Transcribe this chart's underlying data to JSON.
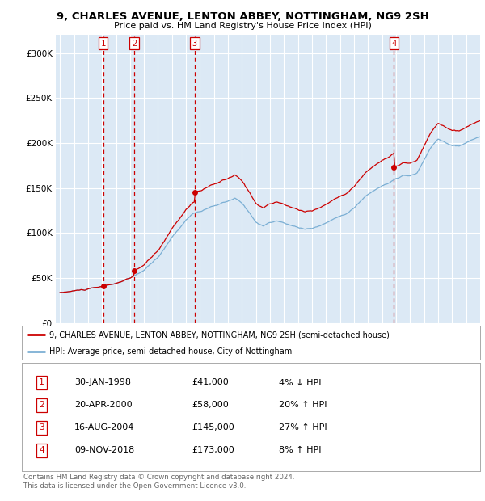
{
  "title": "9, CHARLES AVENUE, LENTON ABBEY, NOTTINGHAM, NG9 2SH",
  "subtitle": "Price paid vs. HM Land Registry's House Price Index (HPI)",
  "bg_color": "#dce9f5",
  "red_color": "#cc0000",
  "blue_color": "#7bafd4",
  "transactions": [
    {
      "num": 1,
      "date_label": "30-JAN-1998",
      "price": 41000,
      "hpi_rel": "4% ↓ HPI",
      "date_x": 1998.08
    },
    {
      "num": 2,
      "date_label": "20-APR-2000",
      "price": 58000,
      "hpi_rel": "20% ↑ HPI",
      "date_x": 2000.3
    },
    {
      "num": 3,
      "date_label": "16-AUG-2004",
      "price": 145000,
      "hpi_rel": "27% ↑ HPI",
      "date_x": 2004.62
    },
    {
      "num": 4,
      "date_label": "09-NOV-2018",
      "price": 173000,
      "hpi_rel": "8% ↑ HPI",
      "date_x": 2018.85
    }
  ],
  "legend_entry1": "9, CHARLES AVENUE, LENTON ABBEY, NOTTINGHAM, NG9 2SH (semi-detached house)",
  "legend_entry2": "HPI: Average price, semi-detached house, City of Nottingham",
  "footer1": "Contains HM Land Registry data © Crown copyright and database right 2024.",
  "footer2": "This data is licensed under the Open Government Licence v3.0.",
  "ylim": [
    0,
    320000
  ],
  "xlim_start": 1994.7,
  "xlim_end": 2025.0,
  "yticks": [
    0,
    50000,
    100000,
    150000,
    200000,
    250000,
    300000
  ]
}
